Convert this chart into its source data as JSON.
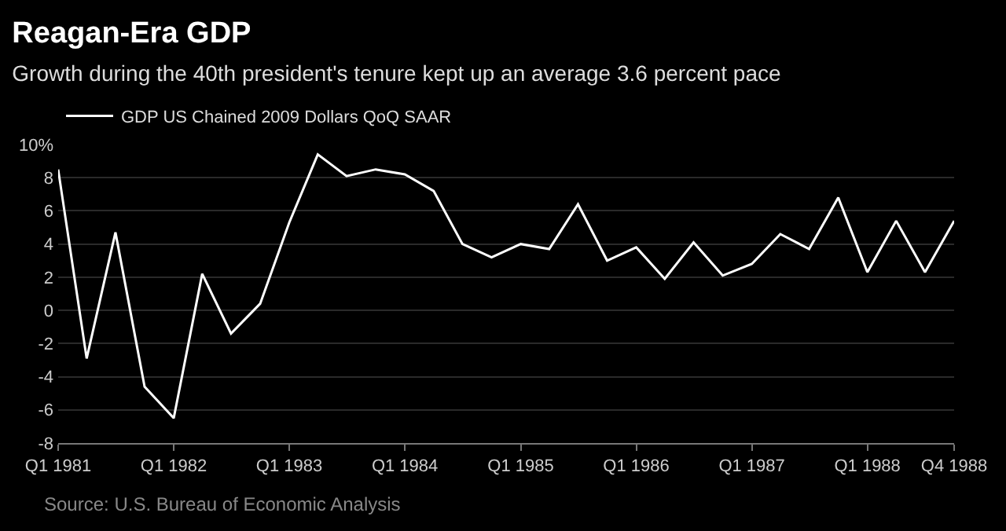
{
  "chart_data": {
    "type": "line",
    "title": "Reagan-Era GDP",
    "subtitle": "Growth during the 40th president's tenure kept up an average 3.6 percent pace",
    "x": [
      "1981-01",
      "1981-04",
      "1981-07",
      "1981-10",
      "1982-01",
      "1982-04",
      "1982-07",
      "1982-10",
      "1983-01",
      "1983-04",
      "1983-07",
      "1983-10",
      "1984-01",
      "1984-04",
      "1984-07",
      "1984-10",
      "1985-01",
      "1985-04",
      "1985-07",
      "1985-10",
      "1986-01",
      "1986-04",
      "1986-07",
      "1986-10",
      "1987-01",
      "1987-04",
      "1987-07",
      "1987-10",
      "1988-01",
      "1988-04",
      "1988-07",
      "1988-10"
    ],
    "series": [
      {
        "name": "GDP US Chained 2009 Dollars QoQ SAAR",
        "color": "#ffffff",
        "values": [
          8.5,
          -2.9,
          4.7,
          -4.6,
          -6.5,
          2.2,
          -1.4,
          0.4,
          5.3,
          9.4,
          8.1,
          8.5,
          8.2,
          7.2,
          4.0,
          3.2,
          4.0,
          3.7,
          6.4,
          3.0,
          3.8,
          1.9,
          4.1,
          2.1,
          2.8,
          4.6,
          3.7,
          6.8,
          2.3,
          5.4,
          2.3,
          5.4
        ]
      }
    ],
    "xlim": [
      "1981-01",
      "1988-10"
    ],
    "xticks": [
      {
        "value": "1981-01",
        "label": "Q1 1981"
      },
      {
        "value": "1982-01",
        "label": "Q1 1982"
      },
      {
        "value": "1983-01",
        "label": "Q1 1983"
      },
      {
        "value": "1984-01",
        "label": "Q1 1984"
      },
      {
        "value": "1985-01",
        "label": "Q1 1985"
      },
      {
        "value": "1986-01",
        "label": "Q1 1986"
      },
      {
        "value": "1987-01",
        "label": "Q1 1987"
      },
      {
        "value": "1988-01",
        "label": "Q1 1988"
      },
      {
        "value": "1988-10",
        "label": "Q4 1988"
      }
    ],
    "ylim": [
      -8,
      10
    ],
    "yticks": [
      -8,
      -6,
      -4,
      -2,
      0,
      2,
      4,
      6,
      8,
      {
        "value": 10,
        "label": "10%"
      }
    ],
    "grid": "y",
    "legend": "top left",
    "line_style": "solid",
    "marker": "none",
    "annotations": [
      "Source: U.S. Bureau of Economic Analysis"
    ]
  }
}
